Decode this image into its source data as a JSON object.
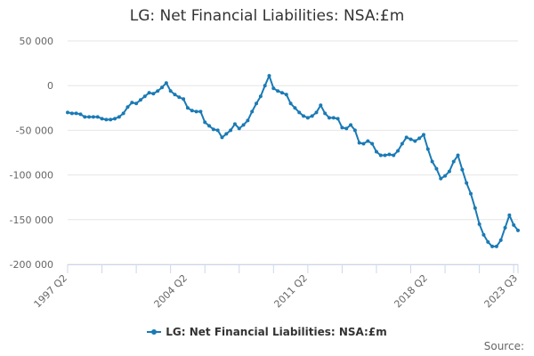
{
  "chart_data": {
    "type": "line",
    "title": "LG: Net Financial Liabilities: NSA:£m",
    "xlabel": "",
    "ylabel": "",
    "ylim": [
      -200000,
      50000
    ],
    "yticks": [
      50000,
      0,
      -50000,
      -100000,
      -150000,
      -200000
    ],
    "ytick_labels": [
      "50 000",
      "0",
      "-50 000",
      "-100 000",
      "-150 000",
      "-200 000"
    ],
    "xtick_labels": [
      "1997 Q2",
      "2004 Q2",
      "2011 Q2",
      "2018 Q2",
      "2023 Q3"
    ],
    "grid": true,
    "legend": "bottom",
    "color": "#1a7ab5",
    "series": [
      {
        "name": "LG: Net Financial Liabilities: NSA:£m",
        "x": [
          "1997 Q2",
          "1997 Q3",
          "1997 Q4",
          "1998 Q1",
          "1998 Q2",
          "1998 Q3",
          "1998 Q4",
          "1999 Q1",
          "1999 Q2",
          "1999 Q3",
          "1999 Q4",
          "2000 Q1",
          "2000 Q2",
          "2000 Q3",
          "2000 Q4",
          "2001 Q1",
          "2001 Q2",
          "2001 Q3",
          "2001 Q4",
          "2002 Q1",
          "2002 Q2",
          "2002 Q3",
          "2002 Q4",
          "2003 Q1",
          "2003 Q2",
          "2003 Q3",
          "2003 Q4",
          "2004 Q1",
          "2004 Q2",
          "2004 Q3",
          "2004 Q4",
          "2005 Q1",
          "2005 Q2",
          "2005 Q3",
          "2005 Q4",
          "2006 Q1",
          "2006 Q2",
          "2006 Q3",
          "2006 Q4",
          "2007 Q1",
          "2007 Q2",
          "2007 Q3",
          "2007 Q4",
          "2008 Q1",
          "2008 Q2",
          "2008 Q3",
          "2008 Q4",
          "2009 Q1",
          "2009 Q2",
          "2009 Q3",
          "2009 Q4",
          "2010 Q1",
          "2010 Q2",
          "2010 Q3",
          "2010 Q4",
          "2011 Q1",
          "2011 Q2",
          "2011 Q3",
          "2011 Q4",
          "2012 Q1",
          "2012 Q2",
          "2012 Q3",
          "2012 Q4",
          "2013 Q1",
          "2013 Q2",
          "2013 Q3",
          "2013 Q4",
          "2014 Q1",
          "2014 Q2",
          "2014 Q3",
          "2014 Q4",
          "2015 Q1",
          "2015 Q2",
          "2015 Q3",
          "2015 Q4",
          "2016 Q1",
          "2016 Q2",
          "2016 Q3",
          "2016 Q4",
          "2017 Q1",
          "2017 Q2",
          "2017 Q3",
          "2017 Q4",
          "2018 Q1",
          "2018 Q2",
          "2018 Q3",
          "2018 Q4",
          "2019 Q1",
          "2019 Q2",
          "2019 Q3",
          "2019 Q4",
          "2020 Q1",
          "2020 Q2",
          "2020 Q3",
          "2020 Q4",
          "2021 Q1",
          "2021 Q2",
          "2021 Q3",
          "2021 Q4",
          "2022 Q1",
          "2022 Q2",
          "2022 Q3",
          "2022 Q4",
          "2023 Q1",
          "2023 Q2",
          "2023 Q3"
        ],
        "values": [
          -30000,
          -31000,
          -31000,
          -32000,
          -35000,
          -35000,
          -35000,
          -35000,
          -37000,
          -38000,
          -38000,
          -37000,
          -35000,
          -31000,
          -24000,
          -19000,
          -20000,
          -16000,
          -12000,
          -8000,
          -9000,
          -6000,
          -2000,
          3000,
          -6000,
          -10000,
          -13000,
          -15000,
          -25000,
          -28000,
          -29000,
          -29000,
          -41000,
          -45000,
          -49000,
          -50000,
          -58000,
          -54000,
          -50000,
          -43000,
          -48000,
          -44000,
          -39000,
          -29000,
          -20000,
          -12000,
          0,
          11000,
          -3000,
          -6000,
          -8000,
          -10000,
          -20000,
          -25000,
          -30000,
          -34000,
          -36000,
          -34000,
          -30000,
          -22000,
          -31000,
          -36000,
          -36000,
          -37000,
          -47000,
          -48000,
          -44000,
          -50000,
          -64000,
          -65000,
          -62000,
          -65000,
          -74000,
          -78000,
          -78000,
          -77000,
          -78000,
          -73000,
          -65000,
          -58000,
          -60000,
          -62000,
          -59000,
          -55000,
          -71000,
          -85000,
          -93000,
          -104000,
          -101000,
          -96000,
          -85000,
          -78000,
          -94000,
          -109000,
          -121000,
          -137000,
          -155000,
          -167000,
          -175000,
          -180000,
          -180000,
          -173000,
          -159000,
          -145000,
          -156000,
          -162000
        ]
      }
    ],
    "credits": "Source:"
  }
}
